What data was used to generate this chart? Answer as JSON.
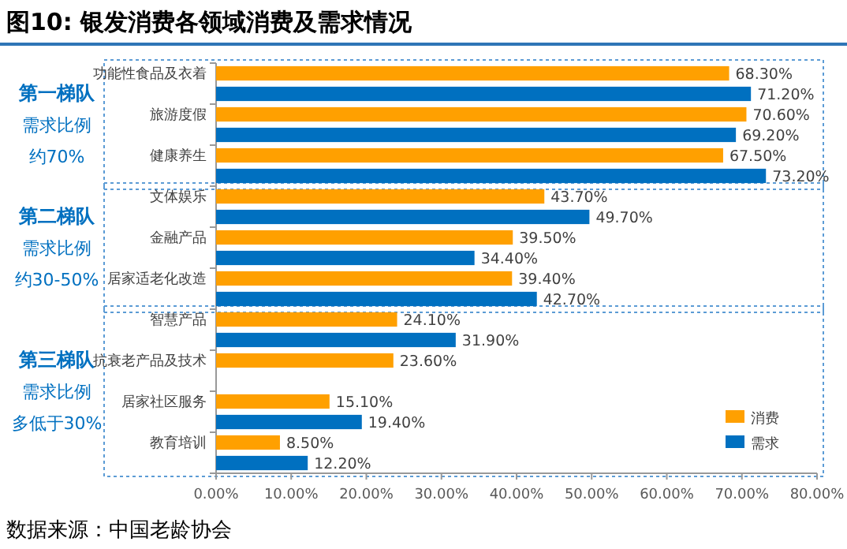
{
  "chart_data": {
    "type": "bar",
    "orientation": "horizontal",
    "title": "图10:  银发消费各领域消费及需求情况",
    "categories": [
      "功能性食品及衣着",
      "旅游度假",
      "健康养生",
      "文体娱乐",
      "金融产品",
      "居家适老化改造",
      "智慧产品",
      "抗衰老产品及技术",
      "居家社区服务",
      "教育培训"
    ],
    "series": [
      {
        "name": "消费",
        "color": "#ffa000",
        "values": [
          68.3,
          70.6,
          67.5,
          43.7,
          39.5,
          39.4,
          24.1,
          23.6,
          15.1,
          8.5
        ],
        "value_labels": [
          "68.30%",
          "70.60%",
          "67.50%",
          "43.70%",
          "39.50%",
          "39.40%",
          "24.10%",
          "23.60%",
          "15.10%",
          "8.50%"
        ]
      },
      {
        "name": "需求",
        "color": "#0070c0",
        "values": [
          71.2,
          69.2,
          73.2,
          49.7,
          34.4,
          42.7,
          31.9,
          null,
          19.4,
          12.2
        ],
        "value_labels": [
          "71.20%",
          "69.20%",
          "73.20%",
          "49.70%",
          "34.40%",
          "42.70%",
          "31.90%",
          null,
          "19.40%",
          "12.20%"
        ]
      }
    ],
    "xlim": [
      0,
      80
    ],
    "xticks": [
      {
        "value": 0,
        "label": "0.00%"
      },
      {
        "value": 10,
        "label": "10.00%"
      },
      {
        "value": 20,
        "label": "20.00%"
      },
      {
        "value": 30,
        "label": "30.00%"
      },
      {
        "value": 40,
        "label": "40.00%"
      },
      {
        "value": 50,
        "label": "50.00%"
      },
      {
        "value": 60,
        "label": "60.00%"
      },
      {
        "value": 70,
        "label": "70.00%"
      },
      {
        "value": 80,
        "label": "80.00%"
      }
    ],
    "grid": false,
    "legend": "bottom right",
    "annotations": [
      "第一梯队",
      "需求比例",
      "约70%",
      "第二梯队",
      "需求比例",
      "约30-50%",
      "第三梯队",
      "需求比例",
      "多低于30%",
      "数据来源：中国老龄协会"
    ]
  }
}
